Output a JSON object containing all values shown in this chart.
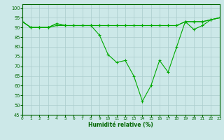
{
  "title": "",
  "xlabel": "Humidité relative (%)",
  "ylabel": "",
  "background_color": "#cce8e8",
  "grid_color": "#aacccc",
  "line_color": "#00aa00",
  "marker": "+",
  "xlim": [
    0,
    23
  ],
  "ylim": [
    45,
    102
  ],
  "yticks": [
    45,
    50,
    55,
    60,
    65,
    70,
    75,
    80,
    85,
    90,
    95,
    100
  ],
  "xticks": [
    0,
    1,
    2,
    3,
    4,
    5,
    6,
    7,
    8,
    9,
    10,
    11,
    12,
    13,
    14,
    15,
    16,
    17,
    18,
    19,
    20,
    21,
    22,
    23
  ],
  "xtick_labels": [
    "0",
    "1",
    "2",
    "3",
    "4",
    "5",
    "6",
    "7",
    "8",
    "9",
    "10",
    "11",
    "12",
    "13",
    "14",
    "15",
    "16",
    "17",
    "18",
    "19",
    "20",
    "21",
    "22",
    "23"
  ],
  "series": [
    [
      93,
      90,
      90,
      90,
      92,
      91,
      91,
      91,
      91,
      86,
      76,
      72,
      73,
      65,
      52,
      60,
      73,
      67,
      80,
      93,
      89,
      91,
      94,
      95
    ],
    [
      93,
      90,
      90,
      90,
      91,
      91,
      91,
      91,
      91,
      91,
      91,
      91,
      91,
      91,
      91,
      91,
      91,
      91,
      91,
      93,
      93,
      93,
      94,
      95
    ],
    [
      93,
      90,
      90,
      90,
      92,
      91,
      91,
      91,
      91,
      91,
      91,
      91,
      91,
      91,
      91,
      91,
      91,
      91,
      91,
      93,
      93,
      93,
      94,
      95
    ]
  ]
}
